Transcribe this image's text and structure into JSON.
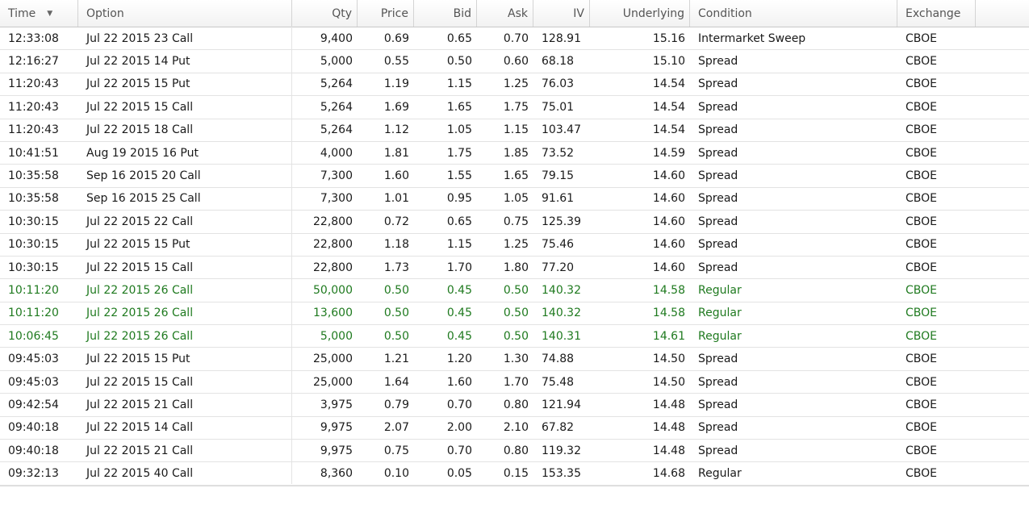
{
  "columns": {
    "time": "Time",
    "option": "Option",
    "qty": "Qty",
    "price": "Price",
    "bid": "Bid",
    "ask": "Ask",
    "iv": "IV",
    "underlying": "Underlying",
    "condition": "Condition",
    "exchange": "Exchange"
  },
  "sort_icon": "sort-desc-icon",
  "colors": {
    "regular_row": "#1f7a1f"
  },
  "rows": [
    {
      "time": "12:33:08",
      "option": "Jul 22 2015 23 Call",
      "qty": "9,400",
      "price": "0.69",
      "bid": "0.65",
      "ask": "0.70",
      "iv": "128.91",
      "underlying": "15.16",
      "condition": "Intermarket Sweep",
      "exchange": "CBOE",
      "highlight": false
    },
    {
      "time": "12:16:27",
      "option": "Jul 22 2015 14 Put",
      "qty": "5,000",
      "price": "0.55",
      "bid": "0.50",
      "ask": "0.60",
      "iv": "68.18",
      "underlying": "15.10",
      "condition": "Spread",
      "exchange": "CBOE",
      "highlight": false
    },
    {
      "time": "11:20:43",
      "option": "Jul 22 2015 15 Put",
      "qty": "5,264",
      "price": "1.19",
      "bid": "1.15",
      "ask": "1.25",
      "iv": "76.03",
      "underlying": "14.54",
      "condition": "Spread",
      "exchange": "CBOE",
      "highlight": false
    },
    {
      "time": "11:20:43",
      "option": "Jul 22 2015 15 Call",
      "qty": "5,264",
      "price": "1.69",
      "bid": "1.65",
      "ask": "1.75",
      "iv": "75.01",
      "underlying": "14.54",
      "condition": "Spread",
      "exchange": "CBOE",
      "highlight": false
    },
    {
      "time": "11:20:43",
      "option": "Jul 22 2015 18 Call",
      "qty": "5,264",
      "price": "1.12",
      "bid": "1.05",
      "ask": "1.15",
      "iv": "103.47",
      "underlying": "14.54",
      "condition": "Spread",
      "exchange": "CBOE",
      "highlight": false
    },
    {
      "time": "10:41:51",
      "option": "Aug 19 2015 16 Put",
      "qty": "4,000",
      "price": "1.81",
      "bid": "1.75",
      "ask": "1.85",
      "iv": "73.52",
      "underlying": "14.59",
      "condition": "Spread",
      "exchange": "CBOE",
      "highlight": false
    },
    {
      "time": "10:35:58",
      "option": "Sep 16 2015 20 Call",
      "qty": "7,300",
      "price": "1.60",
      "bid": "1.55",
      "ask": "1.65",
      "iv": "79.15",
      "underlying": "14.60",
      "condition": "Spread",
      "exchange": "CBOE",
      "highlight": false
    },
    {
      "time": "10:35:58",
      "option": "Sep 16 2015 25 Call",
      "qty": "7,300",
      "price": "1.01",
      "bid": "0.95",
      "ask": "1.05",
      "iv": "91.61",
      "underlying": "14.60",
      "condition": "Spread",
      "exchange": "CBOE",
      "highlight": false
    },
    {
      "time": "10:30:15",
      "option": "Jul 22 2015 22 Call",
      "qty": "22,800",
      "price": "0.72",
      "bid": "0.65",
      "ask": "0.75",
      "iv": "125.39",
      "underlying": "14.60",
      "condition": "Spread",
      "exchange": "CBOE",
      "highlight": false
    },
    {
      "time": "10:30:15",
      "option": "Jul 22 2015 15 Put",
      "qty": "22,800",
      "price": "1.18",
      "bid": "1.15",
      "ask": "1.25",
      "iv": "75.46",
      "underlying": "14.60",
      "condition": "Spread",
      "exchange": "CBOE",
      "highlight": false
    },
    {
      "time": "10:30:15",
      "option": "Jul 22 2015 15 Call",
      "qty": "22,800",
      "price": "1.73",
      "bid": "1.70",
      "ask": "1.80",
      "iv": "77.20",
      "underlying": "14.60",
      "condition": "Spread",
      "exchange": "CBOE",
      "highlight": false
    },
    {
      "time": "10:11:20",
      "option": "Jul 22 2015 26 Call",
      "qty": "50,000",
      "price": "0.50",
      "bid": "0.45",
      "ask": "0.50",
      "iv": "140.32",
      "underlying": "14.58",
      "condition": "Regular",
      "exchange": "CBOE",
      "highlight": true
    },
    {
      "time": "10:11:20",
      "option": "Jul 22 2015 26 Call",
      "qty": "13,600",
      "price": "0.50",
      "bid": "0.45",
      "ask": "0.50",
      "iv": "140.32",
      "underlying": "14.58",
      "condition": "Regular",
      "exchange": "CBOE",
      "highlight": true
    },
    {
      "time": "10:06:45",
      "option": "Jul 22 2015 26 Call",
      "qty": "5,000",
      "price": "0.50",
      "bid": "0.45",
      "ask": "0.50",
      "iv": "140.31",
      "underlying": "14.61",
      "condition": "Regular",
      "exchange": "CBOE",
      "highlight": true
    },
    {
      "time": "09:45:03",
      "option": "Jul 22 2015 15 Put",
      "qty": "25,000",
      "price": "1.21",
      "bid": "1.20",
      "ask": "1.30",
      "iv": "74.88",
      "underlying": "14.50",
      "condition": "Spread",
      "exchange": "CBOE",
      "highlight": false
    },
    {
      "time": "09:45:03",
      "option": "Jul 22 2015 15 Call",
      "qty": "25,000",
      "price": "1.64",
      "bid": "1.60",
      "ask": "1.70",
      "iv": "75.48",
      "underlying": "14.50",
      "condition": "Spread",
      "exchange": "CBOE",
      "highlight": false
    },
    {
      "time": "09:42:54",
      "option": "Jul 22 2015 21 Call",
      "qty": "3,975",
      "price": "0.79",
      "bid": "0.70",
      "ask": "0.80",
      "iv": "121.94",
      "underlying": "14.48",
      "condition": "Spread",
      "exchange": "CBOE",
      "highlight": false
    },
    {
      "time": "09:40:18",
      "option": "Jul 22 2015 14 Call",
      "qty": "9,975",
      "price": "2.07",
      "bid": "2.00",
      "ask": "2.10",
      "iv": "67.82",
      "underlying": "14.48",
      "condition": "Spread",
      "exchange": "CBOE",
      "highlight": false
    },
    {
      "time": "09:40:18",
      "option": "Jul 22 2015 21 Call",
      "qty": "9,975",
      "price": "0.75",
      "bid": "0.70",
      "ask": "0.80",
      "iv": "119.32",
      "underlying": "14.48",
      "condition": "Spread",
      "exchange": "CBOE",
      "highlight": false
    },
    {
      "time": "09:32:13",
      "option": "Jul 22 2015 40 Call",
      "qty": "8,360",
      "price": "0.10",
      "bid": "0.05",
      "ask": "0.15",
      "iv": "153.35",
      "underlying": "14.68",
      "condition": "Regular",
      "exchange": "CBOE",
      "highlight": false
    }
  ]
}
